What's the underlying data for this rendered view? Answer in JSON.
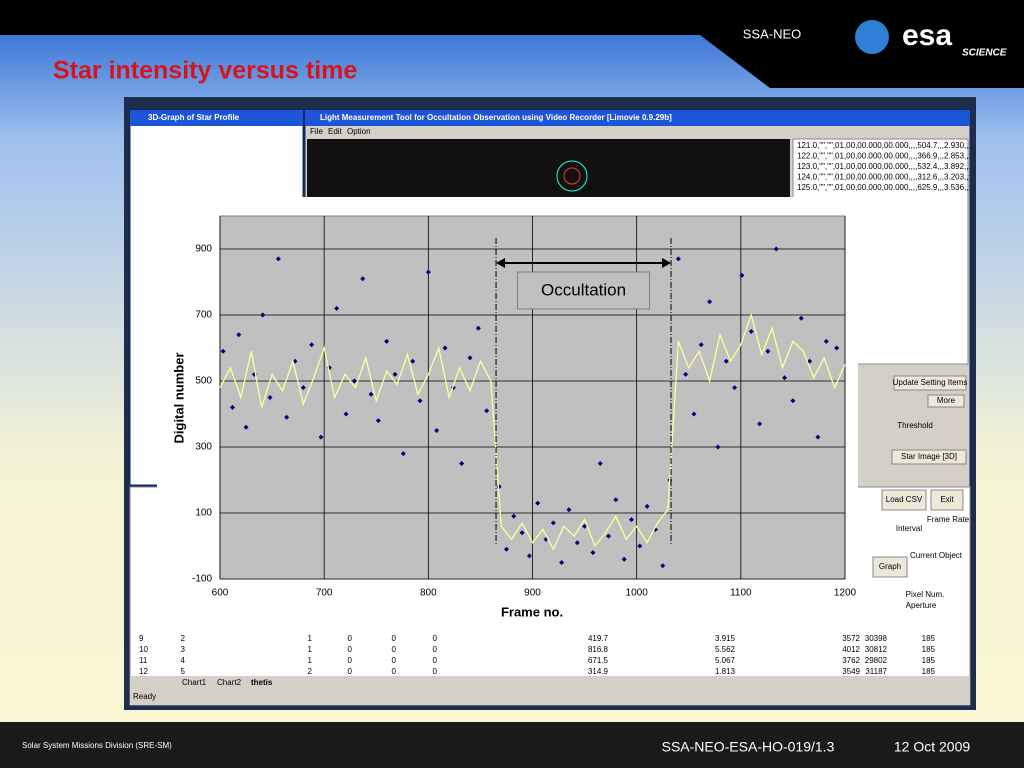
{
  "slide": {
    "header": "SSA-NEO",
    "logo": "esa",
    "logo_sub": "SCIENCE",
    "title": "Star intensity versus time",
    "footer_left": "Solar System Missions Division (SRE-SM)",
    "footer_doc": "SSA-NEO-ESA-HO-019/1.3",
    "footer_date": "12 Oct 2009"
  },
  "windows": {
    "profile_title": "3D-Graph of Star Profile",
    "main_title": "Light Measurement Tool for Occultation Observation using Video Recorder [Limovie 0.9.29b]",
    "menu": [
      "File",
      "Edit",
      "Option"
    ],
    "log_lines": [
      "121.0,\"\",\"\",01,00,00.000,00.000,,,,504.7,,,2.930,,;",
      "122.0,\"\",\"\",01,00,00.000,00.000,,,,366.9,,,2.853,,;",
      "123.0,\"\",\"\",01,00,00.000,00.000,,,,532.4,,,3.892,,;",
      "124.0,\"\",\"\",01,00,00.000,00.000,,,,312.6,,,3.203,,;",
      "125.0,\"\",\"\",01,00,00.000,00.000,,,,625.9,,,3.536,,;"
    ],
    "buttons": [
      "Update Setting Items",
      "More",
      "Star Image [3D]",
      "Load CSV",
      "Exit",
      "Graph"
    ],
    "labels": [
      "Threshold",
      "Current Object",
      "Interval",
      "Frame Rate",
      "Pixel Num.",
      "Aperture"
    ],
    "tabs": [
      "Chart1",
      "Chart2",
      "thetis"
    ],
    "status": "Ready"
  },
  "sheet": {
    "rows": [
      [
        9,
        2,
        1,
        0,
        0,
        0,
        419.7,
        3.915,
        3572,
        30398,
        185
      ],
      [
        10,
        3,
        1,
        0,
        0,
        0,
        816.8,
        5.562,
        4012,
        30812,
        185
      ],
      [
        11,
        4,
        1,
        0,
        0,
        0,
        671.5,
        5.067,
        3762,
        29802,
        185
      ],
      [
        12,
        5,
        2,
        0,
        0,
        0,
        314.9,
        1.813,
        3549,
        31187,
        185
      ]
    ]
  },
  "chart_data": {
    "type": "scatter",
    "x_label": "Frame no.",
    "y_label": "Digital number",
    "xlim": [
      600,
      1200
    ],
    "ylim": [
      -100,
      1000
    ],
    "xticks": [
      600,
      700,
      800,
      900,
      1000,
      1100,
      1200
    ],
    "yticks": [
      -100,
      100,
      300,
      500,
      700,
      900
    ],
    "grid": true,
    "occultation": {
      "label": "Occultation",
      "start": 865,
      "end": 1033
    },
    "series": [
      {
        "type": "scatter",
        "color": "#000080",
        "x": [
          603,
          612,
          618,
          625,
          633,
          641,
          648,
          656,
          664,
          672,
          680,
          688,
          697,
          705,
          712,
          721,
          729,
          737,
          745,
          752,
          760,
          768,
          776,
          785,
          792,
          800,
          808,
          816,
          824,
          832,
          840,
          848,
          856,
          868,
          875,
          882,
          890,
          897,
          905,
          913,
          920,
          928,
          935,
          943,
          950,
          958,
          965,
          973,
          980,
          988,
          995,
          1003,
          1010,
          1018,
          1025,
          1032,
          1040,
          1047,
          1055,
          1062,
          1070,
          1078,
          1086,
          1094,
          1101,
          1110,
          1118,
          1126,
          1134,
          1142,
          1150,
          1158,
          1166,
          1174,
          1182,
          1192
        ],
        "y": [
          590,
          420,
          640,
          360,
          520,
          700,
          450,
          870,
          390,
          560,
          480,
          610,
          330,
          540,
          720,
          400,
          500,
          810,
          460,
          380,
          620,
          520,
          280,
          560,
          440,
          830,
          350,
          600,
          480,
          250,
          570,
          660,
          410,
          180,
          -10,
          90,
          40,
          -30,
          130,
          20,
          70,
          -50,
          110,
          10,
          60,
          -20,
          250,
          30,
          140,
          -40,
          80,
          0,
          120,
          50,
          -60,
          200,
          870,
          520,
          400,
          610,
          740,
          300,
          560,
          480,
          820,
          650,
          370,
          590,
          900,
          510,
          440,
          690,
          560,
          330,
          620,
          600
        ]
      },
      {
        "type": "line",
        "color": "#ffff99",
        "x": [
          600,
          610,
          620,
          630,
          640,
          650,
          660,
          670,
          680,
          690,
          700,
          710,
          720,
          730,
          740,
          750,
          760,
          770,
          780,
          790,
          800,
          810,
          820,
          830,
          840,
          850,
          860,
          870,
          880,
          890,
          900,
          910,
          920,
          930,
          940,
          950,
          960,
          970,
          980,
          990,
          1000,
          1010,
          1020,
          1030,
          1040,
          1050,
          1060,
          1070,
          1080,
          1090,
          1100,
          1110,
          1120,
          1130,
          1140,
          1150,
          1160,
          1170,
          1180,
          1190,
          1200
        ],
        "y": [
          480,
          540,
          450,
          590,
          420,
          520,
          470,
          560,
          430,
          510,
          600,
          450,
          520,
          480,
          570,
          440,
          530,
          490,
          580,
          460,
          520,
          600,
          450,
          540,
          470,
          560,
          500,
          60,
          20,
          70,
          10,
          50,
          -10,
          60,
          30,
          80,
          0,
          40,
          90,
          20,
          60,
          10,
          70,
          110,
          620,
          540,
          590,
          500,
          640,
          560,
          610,
          700,
          580,
          660,
          540,
          620,
          590,
          510,
          570,
          480,
          550
        ]
      }
    ]
  }
}
